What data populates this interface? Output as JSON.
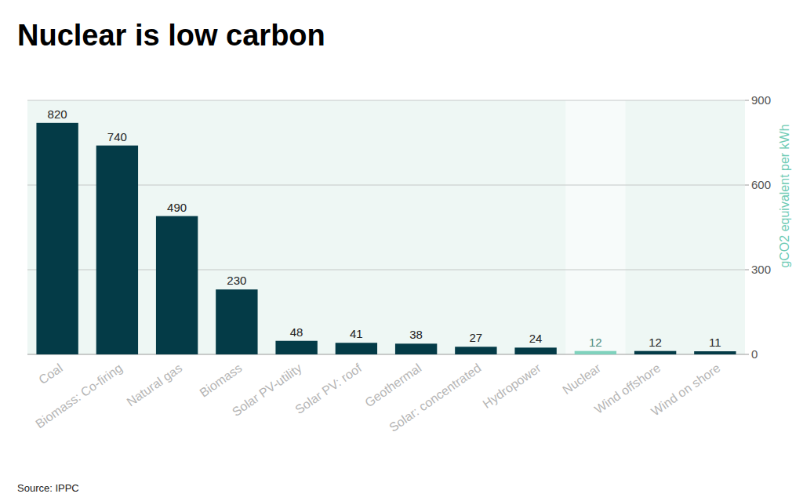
{
  "chart_data": {
    "type": "bar",
    "title": "Nuclear is low carbon",
    "source": "Source: IPPC",
    "y_label": "gCO2 equivalent per kWh",
    "categories": [
      "Coal",
      "Biomass: Co-firing",
      "Natural gas",
      "Biomass",
      "Solar PV-utility",
      "Solar PV: roof",
      "Geothermal",
      "Solar: concentrated",
      "Hydropower",
      "Nuclear",
      "Wind offshore",
      "Wind on shore"
    ],
    "values": [
      820,
      740,
      490,
      230,
      48,
      41,
      38,
      27,
      24,
      12,
      12,
      11
    ],
    "colors": [
      "#043b47",
      "#043b47",
      "#043b47",
      "#043b47",
      "#043b47",
      "#043b47",
      "#043b47",
      "#043b47",
      "#043b47",
      "#7fd2bd",
      "#043b47",
      "#043b47"
    ],
    "ylim": [
      0,
      900
    ],
    "yticks": [
      0,
      300,
      600,
      900
    ],
    "grid": true,
    "data_labels": true
  }
}
